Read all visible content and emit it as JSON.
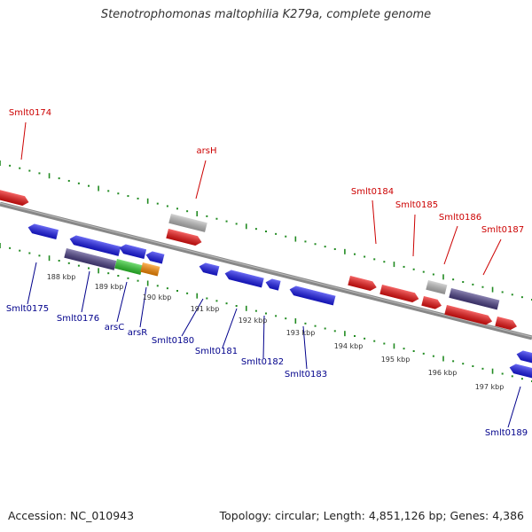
{
  "title": "Stenotrophomonas maltophilia K279a, complete genome",
  "footer": {
    "accession": "Accession: NC_010943",
    "summary": "Topology: circular; Length: 4,851,126 bp; Genes: 4,386"
  },
  "colors": {
    "forward_gene": "#ee1111",
    "reverse_gene": "#1a1aee",
    "pseudogene": "#bbbbbb",
    "operon": "#4b3f86",
    "arsC": "#2ecc2e",
    "arsR": "#ff8c00",
    "backbone": "#888888",
    "forward_label": "#cc0000",
    "reverse_label": "#00008b",
    "dotted_scale": "#228b22"
  },
  "scale_ticks": [
    "188 kbp",
    "189 kbp",
    "190 kbp",
    "191 kbp",
    "192 kbp",
    "193 kbp",
    "194 kbp",
    "195 kbp",
    "196 kbp",
    "197 kbp"
  ],
  "forward_labels": [
    "Smlt0174",
    "arsH",
    "Smlt0184",
    "Smlt0185",
    "Smlt0186",
    "Smlt0187"
  ],
  "reverse_labels": [
    "Smlt0175",
    "Smlt0176",
    "arsC",
    "arsR",
    "Smlt0180",
    "Smlt0181",
    "Smlt0182",
    "Smlt0183",
    "Smlt0189"
  ]
}
